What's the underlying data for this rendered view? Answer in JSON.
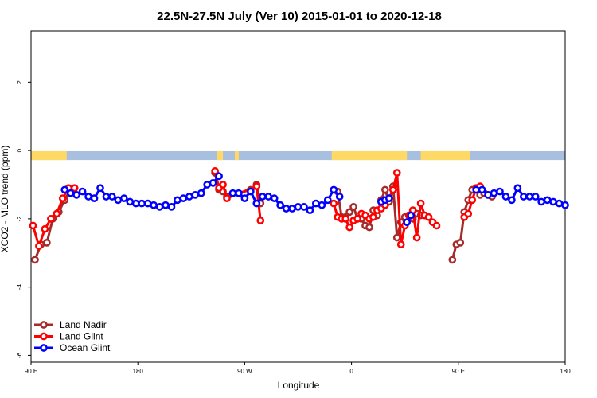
{
  "chart_data": {
    "type": "line",
    "title": "22.5N-27.5N July (Ver 10)   2015-01-01 to 2020-12-18",
    "xlabel": "Longitude",
    "ylabel": "XCO2 - MLO trend (ppm)",
    "xlim": [
      -90,
      180
    ],
    "ylim": [
      -6.2,
      3.5
    ],
    "x_ticks": [
      {
        "value": -90,
        "label": "90 E"
      },
      {
        "value": -36,
        "label": "180"
      },
      {
        "value": 18,
        "label": "90 W"
      },
      {
        "value": 72,
        "label": "0"
      },
      {
        "value": 126,
        "label": "90 E"
      },
      {
        "value": 180,
        "label": "180"
      }
    ],
    "y_ticks": [
      {
        "value": 2,
        "label": "2"
      },
      {
        "value": 0,
        "label": "0"
      },
      {
        "value": -2,
        "label": "-2"
      },
      {
        "value": -4,
        "label": "-4"
      },
      {
        "value": -6,
        "label": "-6"
      }
    ],
    "land_ocean_band": {
      "y_range": [
        -0.28,
        -0.02
      ],
      "land_color": "#FFD966",
      "ocean_color": "#A9BFDF",
      "land_segments": [
        [
          -90,
          -72
        ],
        [
          4,
          7
        ],
        [
          13,
          15
        ],
        [
          62,
          100
        ],
        [
          107,
          132
        ]
      ]
    },
    "series": [
      {
        "name": "Land Nadir",
        "color": "#A52A2A",
        "x": [
          -88,
          -85,
          -82,
          -79,
          -76,
          -73,
          -70
        ],
        "y": [
          -3.2,
          -2.75,
          -2.7,
          -2.0,
          -1.8,
          -1.45,
          -1.15
        ],
        "breaks": [],
        "x2": [
          3,
          5,
          7,
          9,
          21,
          24,
          26
        ],
        "y2": [
          -0.65,
          -1.15,
          -1.2,
          -1.35,
          -1.15,
          -1.0,
          -1.55
        ],
        "x3": [
          65,
          67,
          69,
          71,
          73,
          75,
          77,
          79,
          81,
          83,
          85,
          87,
          89,
          91,
          93,
          95,
          97,
          99,
          101,
          103,
          105,
          107,
          109
        ],
        "y3": [
          -1.2,
          -1.95,
          -1.95,
          -1.8,
          -1.65,
          -2.0,
          -2.0,
          -2.2,
          -2.25,
          -1.75,
          -1.9,
          -1.45,
          -1.15,
          -1.5,
          -1.05,
          -2.55,
          -2.1,
          -1.95,
          -1.9,
          -2.0,
          -1.85,
          -1.9,
          -1.9
        ],
        "x4": [
          123,
          125,
          127,
          129,
          131,
          133,
          135,
          137,
          139,
          141,
          143
        ],
        "y4": [
          -3.2,
          -2.75,
          -2.7,
          -1.8,
          -1.45,
          -1.15,
          -1.1,
          -1.3,
          -1.25,
          -1.3,
          -1.35
        ]
      },
      {
        "name": "Land Glint",
        "color": "#FF0000",
        "x": [
          -89,
          -86,
          -83,
          -80,
          -77,
          -74,
          -71,
          -68
        ],
        "y": [
          -2.2,
          -2.8,
          -2.3,
          -2.0,
          -1.85,
          -1.4,
          -1.1,
          -1.1
        ],
        "x2": [
          3,
          5,
          7,
          9,
          24,
          26
        ],
        "y2": [
          -0.6,
          -1.1,
          -1.0,
          -1.4,
          -1.05,
          -2.05
        ],
        "x3": [
          63,
          65,
          67,
          69,
          71,
          73,
          75,
          77,
          79,
          81,
          83,
          85,
          87,
          89,
          91,
          93,
          95,
          97,
          99,
          101,
          103,
          105,
          107,
          109,
          111,
          113,
          115
        ],
        "y3": [
          -1.55,
          -1.95,
          -2.0,
          -2.0,
          -2.25,
          -2.05,
          -2.0,
          -1.85,
          -1.9,
          -2.0,
          -1.95,
          -1.75,
          -1.7,
          -1.6,
          -1.4,
          -1.15,
          -0.65,
          -2.75,
          -2.2,
          -1.9,
          -1.75,
          -2.55,
          -1.55,
          -1.9,
          -1.95,
          -2.1,
          -2.2
        ],
        "x4": [
          129,
          131,
          133,
          135,
          137
        ],
        "y4": [
          -1.95,
          -1.85,
          -1.45,
          -1.1,
          -1.05
        ]
      },
      {
        "name": "Ocean Glint",
        "color": "#0000FF",
        "x": [
          -73,
          -70,
          -67,
          -64,
          -61,
          -58,
          -55,
          -52,
          -49,
          -46,
          -43,
          -40,
          -37,
          -34,
          -31,
          -28,
          -25,
          -22,
          -19,
          -16,
          -13,
          -10,
          -7,
          -4,
          -1,
          2,
          5
        ],
        "y": [
          -1.15,
          -1.25,
          -1.3,
          -1.2,
          -1.35,
          -1.4,
          -1.1,
          -1.35,
          -1.35,
          -1.45,
          -1.4,
          -1.5,
          -1.55,
          -1.55,
          -1.55,
          -1.6,
          -1.65,
          -1.6,
          -1.65,
          -1.45,
          -1.4,
          -1.35,
          -1.3,
          -1.25,
          -1.0,
          -0.95,
          -0.75
        ],
        "x2": [
          12,
          15,
          18,
          21,
          24,
          27,
          30,
          33,
          36,
          39,
          42,
          45,
          48,
          51,
          54,
          57,
          60,
          63,
          66
        ],
        "y2": [
          -1.25,
          -1.25,
          -1.4,
          -1.2,
          -1.55,
          -1.35,
          -1.35,
          -1.4,
          -1.6,
          -1.7,
          -1.7,
          -1.65,
          -1.65,
          -1.75,
          -1.55,
          -1.6,
          -1.45,
          -1.15,
          -1.35
        ],
        "x3": [
          87,
          89,
          91
        ],
        "y3": [
          -1.5,
          -1.45,
          -1.4
        ],
        "x4": [
          100,
          102
        ],
        "y4": [
          -2.1,
          -1.9
        ],
        "x5": [
          135,
          138,
          141,
          144,
          147,
          150,
          153,
          156,
          159,
          162,
          165,
          168,
          171,
          174,
          177,
          180
        ],
        "y5": [
          -1.15,
          -1.15,
          -1.3,
          -1.25,
          -1.2,
          -1.35,
          -1.45,
          -1.1,
          -1.35,
          -1.35,
          -1.35,
          -1.5,
          -1.45,
          -1.5,
          -1.55,
          -1.6
        ]
      }
    ],
    "legend": {
      "position": "bottom-left",
      "entries": [
        "Land Nadir",
        "Land Glint",
        "Ocean Glint"
      ]
    },
    "grid": false
  }
}
